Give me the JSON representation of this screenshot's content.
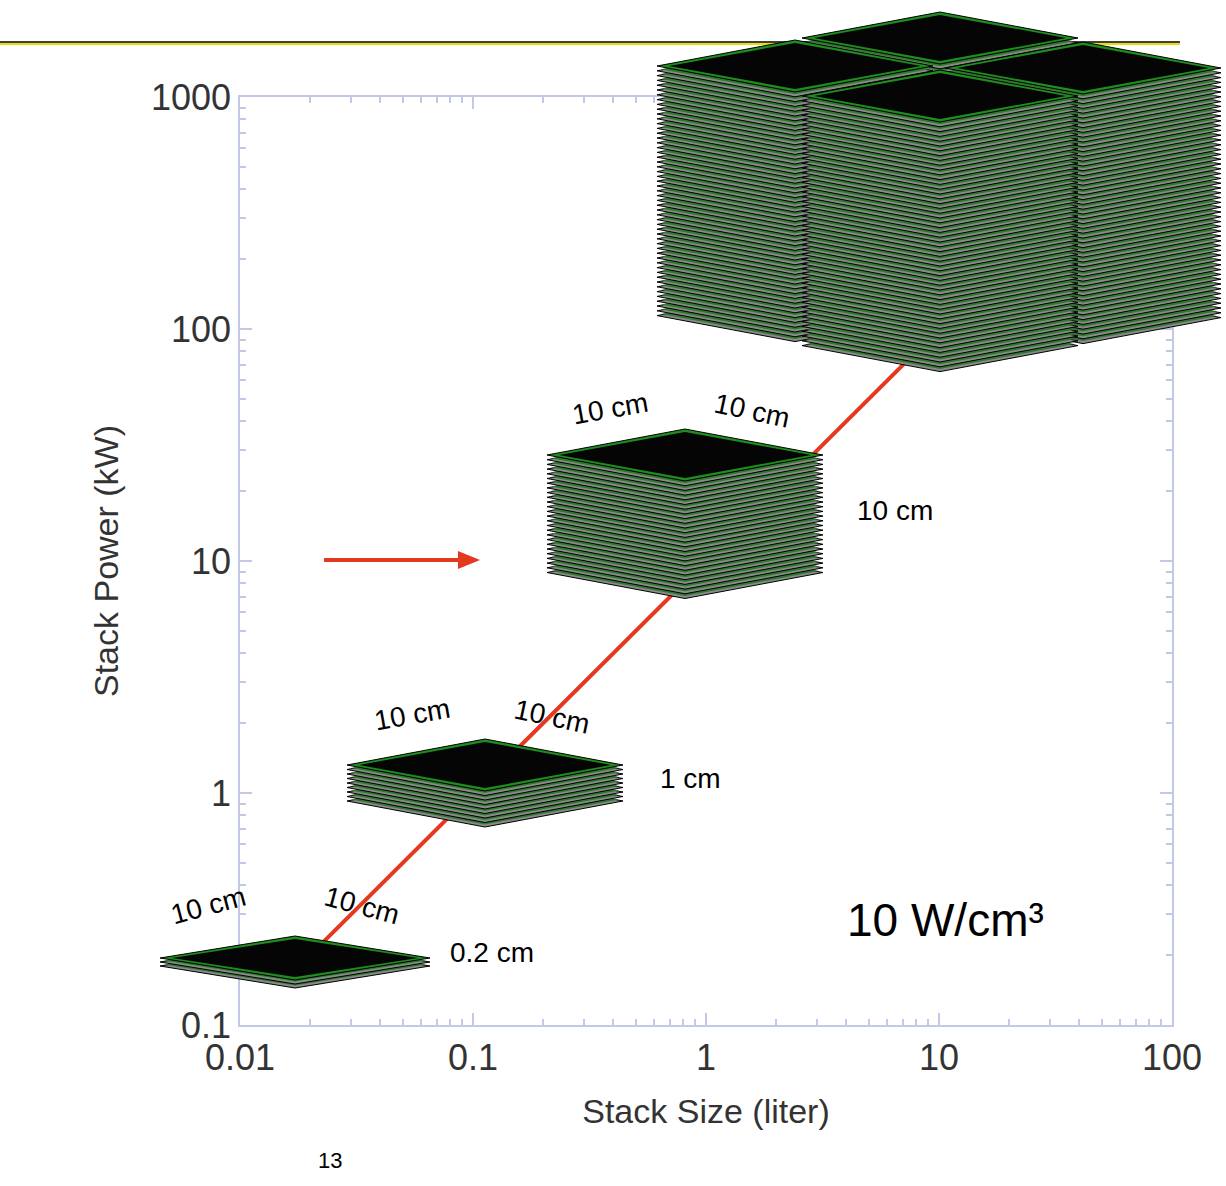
{
  "chart_data": {
    "type": "line",
    "xlabel": "Stack Size (liter)",
    "ylabel": "Stack Power (kW)",
    "x": [
      0.02,
      100
    ],
    "values": [
      0.2,
      1000
    ],
    "color": "#e5391f",
    "log": true,
    "grid": false,
    "xlim": [
      0.01,
      100
    ],
    "ylim": [
      0.1,
      1000
    ],
    "xticks": [
      0.01,
      0.1,
      1,
      10,
      100
    ],
    "yticks": [
      0.1,
      1,
      10,
      100,
      1000
    ],
    "annotations": [
      "10 cm",
      "10 cm",
      "0.2 cm",
      "10 cm",
      "10 cm",
      "1 cm",
      "10 cm",
      "10 cm",
      "10 cm",
      "10 W/cm³",
      "13"
    ]
  }
}
